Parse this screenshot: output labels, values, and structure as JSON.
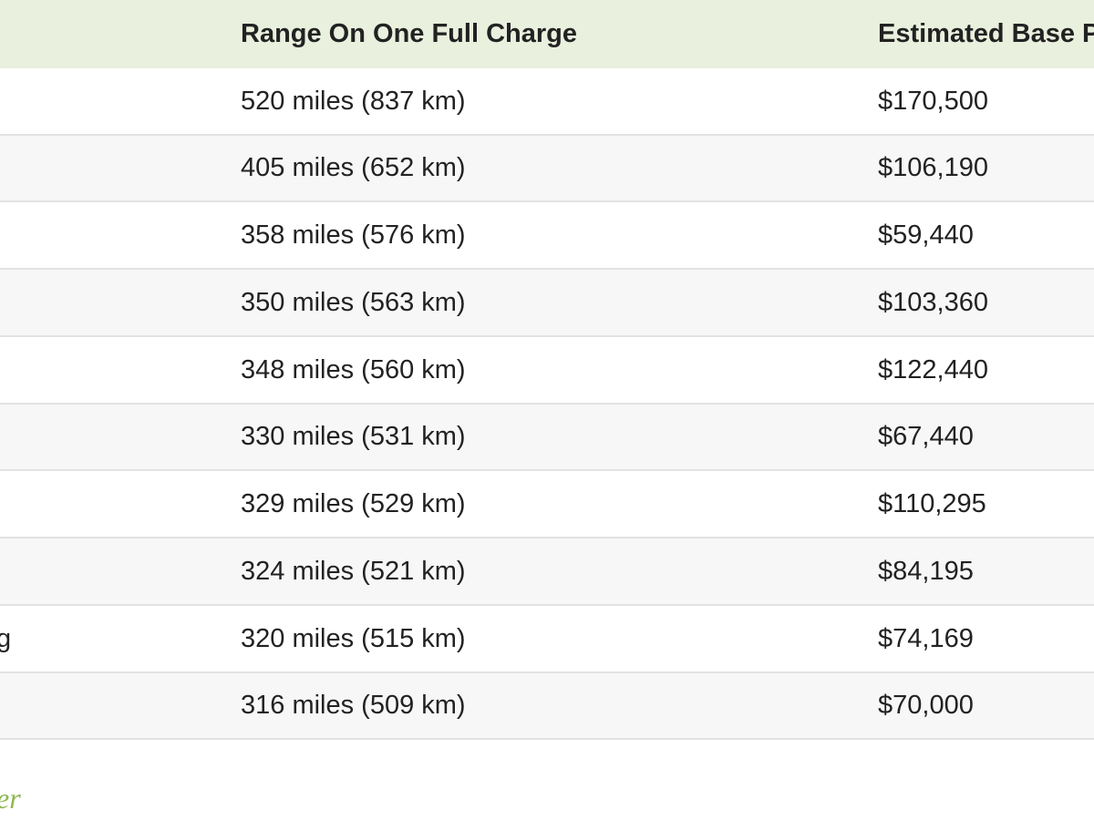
{
  "table": {
    "header": {
      "range": "Range On One Full Charge",
      "price": "Estimated Base P"
    },
    "rows": [
      {
        "range": "520 miles (837 km)",
        "price": "$170,500"
      },
      {
        "range": "405 miles (652 km)",
        "price": "$106,190"
      },
      {
        "range": "358 miles (576 km)",
        "price": "$59,440"
      },
      {
        "range": "350 miles (563 km)",
        "price": "$103,360"
      },
      {
        "range": "348 miles (560 km)",
        "price": "$122,440"
      },
      {
        "range": "330 miles (531 km)",
        "price": "$67,440"
      },
      {
        "range": "329 miles (529 km)",
        "price": "$110,295"
      },
      {
        "range": "324 miles (521 km)",
        "price": "$84,195"
      },
      {
        "name": "g",
        "range": "320 miles (515 km)",
        "price": "$74,169"
      },
      {
        "range": "316 miles (509 km)",
        "price": "$70,000"
      }
    ]
  },
  "footer": {
    "text": "er"
  }
}
